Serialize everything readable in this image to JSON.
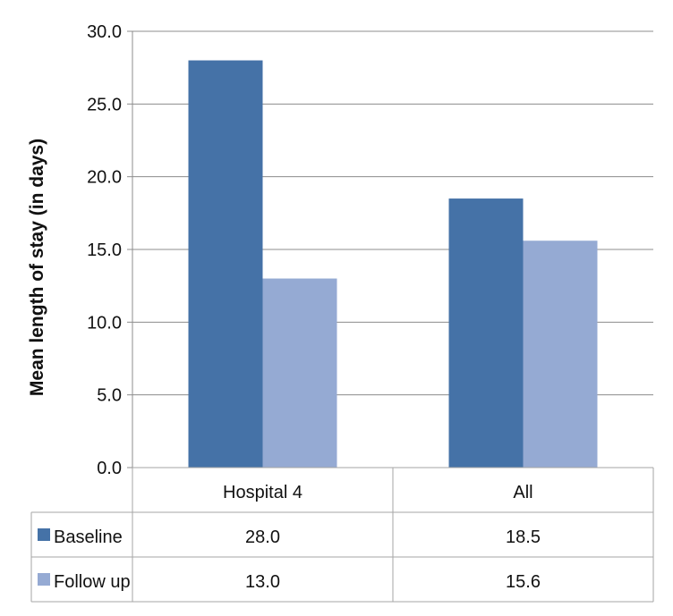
{
  "chart_data": {
    "type": "bar",
    "categories": [
      "Hospital 4",
      "All"
    ],
    "series": [
      {
        "name": "Baseline",
        "values": [
          28.0,
          18.5
        ],
        "color": "#4572a7",
        "labels": [
          "28.0",
          "18.5"
        ]
      },
      {
        "name": "Follow up",
        "values": [
          13.0,
          15.6
        ],
        "color": "#95aad3",
        "labels": [
          "13.0",
          "15.6"
        ]
      }
    ],
    "title": "",
    "xlabel": "",
    "ylabel": "Mean length of stay (in days)",
    "ylim": [
      0,
      30
    ],
    "yticks": [
      "0.0",
      "5.0",
      "10.0",
      "15.0",
      "20.0",
      "25.0",
      "30.0"
    ],
    "grid": true,
    "legend": "data-table-left"
  }
}
